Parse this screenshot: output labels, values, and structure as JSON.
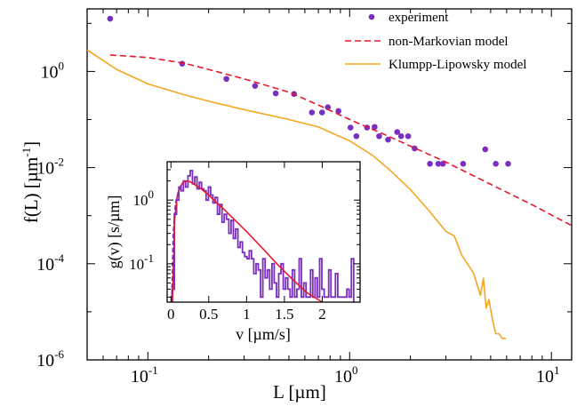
{
  "chart_data": [
    {
      "type": "scatter",
      "xlabel": "L [µm]",
      "ylabel": "f(L) [µm",
      "ylabel_sup": "-1",
      "ylabel_close": "]",
      "xscale": "log",
      "yscale": "log",
      "xlim": [
        0.05,
        12.6
      ],
      "ylim": [
        1e-06,
        20
      ],
      "x_ticks": [
        {
          "value": 0.1,
          "base": "10",
          "exp": "-1"
        },
        {
          "value": 1,
          "base": "10",
          "exp": "0"
        },
        {
          "value": 10,
          "base": "10",
          "exp": "1"
        }
      ],
      "y_ticks": [
        {
          "value": 1e-06,
          "base": "10",
          "exp": "-6"
        },
        {
          "value": 0.0001,
          "base": "10",
          "exp": "-4"
        },
        {
          "value": 0.01,
          "base": "10",
          "exp": "-2"
        },
        {
          "value": 1,
          "base": "10",
          "exp": "0"
        }
      ],
      "legend_position": "top-right",
      "series": [
        {
          "name": "experiment",
          "kind": "points",
          "color": "#7b2fbe",
          "x": [
            0.065,
            0.148,
            0.245,
            0.34,
            0.43,
            0.53,
            0.65,
            0.73,
            0.78,
            0.88,
            1.01,
            1.08,
            1.22,
            1.33,
            1.4,
            1.55,
            1.72,
            1.8,
            1.95,
            2.1,
            2.5,
            2.75,
            2.9,
            3.65,
            4.7,
            5.3,
            6.1
          ],
          "y": [
            12.5,
            1.45,
            0.7,
            0.5,
            0.35,
            0.34,
            0.14,
            0.14,
            0.18,
            0.15,
            0.068,
            0.045,
            0.068,
            0.07,
            0.045,
            0.038,
            0.055,
            0.045,
            0.045,
            0.025,
            0.012,
            0.012,
            0.012,
            0.012,
            0.024,
            0.012,
            0.012
          ]
        },
        {
          "name": "non-Markovian model",
          "kind": "dashed",
          "color": "#e8162b",
          "x": [
            0.065,
            0.1,
            0.15,
            0.2,
            0.3,
            0.5,
            0.7,
            1.0,
            1.5,
            2.0,
            3.0,
            5.0,
            8.0,
            12.6
          ],
          "y": [
            2.2,
            1.95,
            1.5,
            1.1,
            0.7,
            0.37,
            0.2,
            0.1,
            0.048,
            0.028,
            0.013,
            0.0045,
            0.0017,
            0.00062
          ]
        },
        {
          "name": "Klumpp-Lipowsky model",
          "kind": "solid",
          "color": "#f5a623",
          "x": [
            0.05,
            0.07,
            0.1,
            0.15,
            0.2,
            0.3,
            0.5,
            0.7,
            1.0,
            1.3,
            1.6,
            2.0,
            2.5,
            3.0,
            3.3,
            3.6,
            3.9,
            4.1,
            4.3,
            4.45,
            4.6,
            4.75,
            4.9,
            5.1,
            5.3,
            5.5,
            5.7,
            5.95
          ],
          "y": [
            2.8,
            1.1,
            0.55,
            0.33,
            0.24,
            0.16,
            0.1,
            0.07,
            0.036,
            0.018,
            0.0085,
            0.0035,
            0.0012,
            0.00047,
            0.00038,
            0.00015,
            9e-05,
            6.5e-05,
            3.5e-05,
            2.2e-05,
            5e-05,
            1.2e-05,
            1.8e-05,
            7e-06,
            3.5e-06,
            3.5e-06,
            2.8e-06,
            2.8e-06
          ]
        }
      ]
    },
    {
      "type": "line",
      "xlabel": "v [µm/s]",
      "ylabel": "g(v) [s/µm]",
      "xscale": "linear",
      "yscale": "log",
      "xlim": [
        -0.05,
        2.5
      ],
      "ylim": [
        0.025,
        4
      ],
      "x_ticks": [
        {
          "value": 0,
          "label": "0"
        },
        {
          "value": 0.5,
          "label": "0.5"
        },
        {
          "value": 1,
          "label": "1"
        },
        {
          "value": 1.5,
          "label": "1.5"
        },
        {
          "value": 2,
          "label": "2"
        }
      ],
      "y_ticks": [
        {
          "value": 1,
          "label": "10",
          "exp": "0"
        },
        {
          "value": 0.1,
          "label": "10",
          "exp": "-1"
        }
      ],
      "series": [
        {
          "name": "",
          "kind": "histogram",
          "color": "#7b2fbe",
          "x": [
            0.03,
            0.06,
            0.09,
            0.12,
            0.15,
            0.18,
            0.21,
            0.24,
            0.27,
            0.3,
            0.33,
            0.36,
            0.39,
            0.42,
            0.45,
            0.48,
            0.51,
            0.54,
            0.57,
            0.6,
            0.63,
            0.66,
            0.69,
            0.72,
            0.75,
            0.78,
            0.81,
            0.84,
            0.87,
            0.9,
            0.93,
            0.96,
            0.99,
            1.02,
            1.05,
            1.08,
            1.11,
            1.14,
            1.17,
            1.2,
            1.23,
            1.26,
            1.29,
            1.32,
            1.35,
            1.38,
            1.41,
            1.44,
            1.47,
            1.5,
            1.53,
            1.56,
            1.59,
            1.62,
            1.65,
            1.68,
            1.71,
            1.74,
            1.77,
            1.8,
            1.83,
            1.86,
            1.89,
            1.92,
            1.95,
            1.98,
            2.01,
            2.04,
            2.07,
            2.1,
            2.13,
            2.16,
            2.19,
            2.22,
            2.25,
            2.28,
            2.31,
            2.34,
            2.37,
            2.4
          ],
          "y": [
            0.04,
            0.6,
            1.0,
            1.6,
            1.4,
            2.0,
            1.6,
            2.4,
            2.9,
            1.8,
            2.3,
            1.5,
            1.9,
            1.5,
            1.4,
            1.0,
            1.6,
            1.2,
            0.9,
            1.1,
            0.6,
            0.85,
            0.45,
            0.6,
            0.5,
            0.3,
            0.48,
            0.25,
            0.35,
            0.18,
            0.22,
            0.15,
            0.13,
            0.12,
            0.16,
            0.12,
            0.07,
            0.1,
            0.08,
            0.03,
            0.12,
            0.06,
            0.08,
            0.04,
            0.1,
            0.05,
            0.03,
            0.07,
            0.1,
            0.04,
            0.06,
            0.04,
            0.03,
            0.08,
            0.03,
            0.04,
            0.12,
            0.03,
            0.05,
            0.03,
            0.03,
            0.08,
            0.03,
            0.06,
            0.03,
            0.12,
            0.04,
            0.03,
            0.03,
            0.08,
            0.03,
            0.03,
            0.07,
            0.03,
            0.03,
            0.03,
            0.03,
            0.04,
            0.03,
            0.12
          ]
        },
        {
          "name": "",
          "kind": "solid",
          "color": "#e8162b",
          "x": [
            0.02,
            0.05,
            0.08,
            0.12,
            0.16,
            0.2,
            0.25,
            0.3,
            0.4,
            0.5,
            0.6,
            0.7,
            0.8,
            0.9,
            1.0,
            1.2,
            1.4,
            1.6,
            1.8,
            2.0
          ],
          "y": [
            0.025,
            0.5,
            1.1,
            1.6,
            1.9,
            2.0,
            1.95,
            1.8,
            1.5,
            1.2,
            0.92,
            0.72,
            0.55,
            0.42,
            0.32,
            0.18,
            0.1,
            0.058,
            0.035,
            0.022
          ]
        },
        {
          "name": "",
          "kind": "dashed",
          "color": "#7b2fbe",
          "x": [
            0.01,
            0.03,
            0.06,
            0.1,
            0.15
          ],
          "y": [
            0.025,
            0.3,
            0.9,
            1.4,
            1.8
          ]
        }
      ]
    }
  ]
}
